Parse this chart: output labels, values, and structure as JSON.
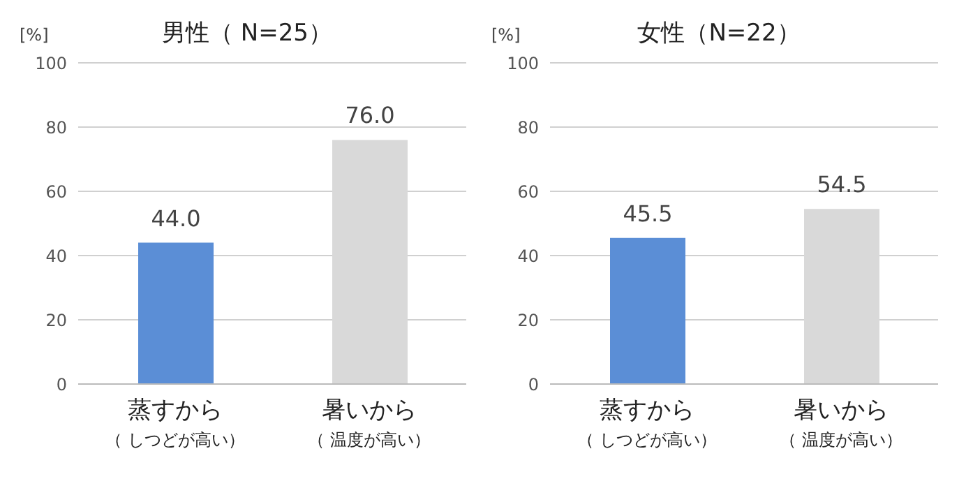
{
  "chart_data": [
    {
      "type": "bar",
      "title": "男性（ N=25）",
      "ylabel": "[%]",
      "categories": [
        "蒸すから（ しつどが高い）",
        "暑いから（ 温度が高い）"
      ],
      "values": [
        44.0,
        76.0
      ],
      "colors": [
        "#5b8ed6",
        "#d9d9d9"
      ],
      "value_labels": [
        "44.0",
        "76.0"
      ],
      "ylim": [
        0,
        100
      ],
      "yticks": [
        0,
        20,
        40,
        60,
        80,
        100
      ],
      "grid": "y"
    },
    {
      "type": "bar",
      "title": "女性（N=22）",
      "ylabel": "[%]",
      "categories": [
        "蒸すから（ しつどが高い）",
        "暑いから（ 温度が高い）"
      ],
      "values": [
        45.5,
        54.5
      ],
      "colors": [
        "#5b8ed6",
        "#d9d9d9"
      ],
      "value_labels": [
        "45.5",
        "54.5"
      ],
      "ylim": [
        0,
        100
      ],
      "yticks": [
        0,
        20,
        40,
        60,
        80,
        100
      ],
      "grid": "y"
    }
  ]
}
